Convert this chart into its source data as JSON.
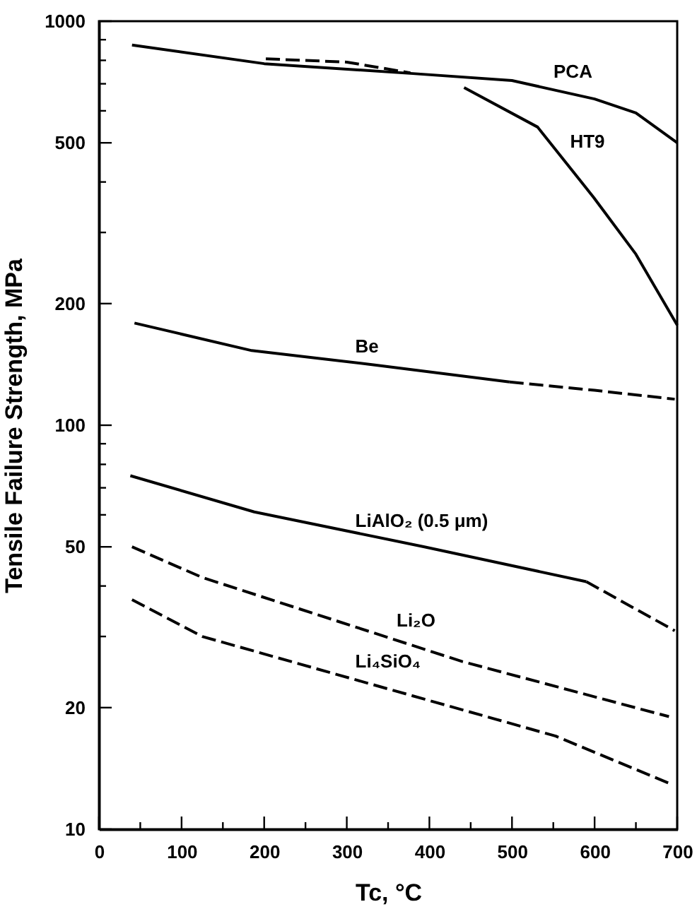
{
  "chart_data": {
    "type": "line",
    "xlabel": "Tc, °C",
    "ylabel": "Tensile Failure Strength, MPa",
    "log": "y",
    "grid": false,
    "marker": "none",
    "xlim": [
      0,
      700
    ],
    "xticks": [
      0,
      {
        "value": 50,
        "label": null
      },
      100,
      {
        "value": 150,
        "label": null
      },
      200,
      {
        "value": 250,
        "label": null
      },
      300,
      {
        "value": 350,
        "label": null
      },
      400,
      {
        "value": 450,
        "label": null
      },
      500,
      {
        "value": 550,
        "label": null
      },
      600,
      {
        "value": 650,
        "label": null
      },
      700
    ],
    "ylim": [
      10,
      1000
    ],
    "yticks": [
      10,
      20,
      {
        "value": 30,
        "label": null
      },
      {
        "value": 40,
        "label": null
      },
      50,
      {
        "value": 60,
        "label": null
      },
      {
        "value": 70,
        "label": null
      },
      {
        "value": 80,
        "label": null
      },
      {
        "value": 90,
        "label": null
      },
      100,
      200,
      {
        "value": 300,
        "label": null
      },
      {
        "value": 400,
        "label": null
      },
      500,
      {
        "value": 600,
        "label": null
      },
      {
        "value": 700,
        "label": null
      },
      {
        "value": 800,
        "label": null
      },
      {
        "value": 900,
        "label": null
      },
      1000
    ],
    "series": [
      {
        "color": "#000000",
        "line_style": "solid",
        "x": [
          40,
          200,
          380,
          500,
          600,
          650,
          700
        ],
        "values": [
          873,
          785,
          742,
          713,
          642,
          593,
          500
        ]
      },
      {
        "color": "#000000",
        "line_style": "dashed",
        "x": [
          202,
          300,
          377
        ],
        "values": [
          807,
          792,
          745
        ]
      },
      {
        "color": "#000000",
        "line_style": "solid",
        "x": [
          442,
          531,
          599,
          650,
          700
        ],
        "values": [
          685,
          547,
          366,
          265,
          177
        ]
      },
      {
        "color": "#000000",
        "line_style": "solid",
        "x": [
          43,
          185,
          334,
          497
        ],
        "values": [
          179,
          153,
          141,
          128
        ]
      },
      {
        "color": "#000000",
        "line_style": "dashed",
        "x": [
          497,
          600,
          697
        ],
        "values": [
          128,
          122,
          116
        ]
      },
      {
        "color": "#000000",
        "line_style": "solid",
        "x": [
          38,
          188,
          394,
          590
        ],
        "values": [
          75,
          61,
          50,
          41
        ]
      },
      {
        "color": "#000000",
        "line_style": "dashed",
        "x": [
          590,
          697
        ],
        "values": [
          41,
          31
        ]
      },
      {
        "color": "#000000",
        "line_style": "dashed",
        "x": [
          40,
          125,
          440,
          690
        ],
        "values": [
          50,
          42,
          26,
          19
        ]
      },
      {
        "color": "#000000",
        "line_style": "dashed",
        "x": [
          40,
          125,
          325,
          553,
          690
        ],
        "values": [
          37,
          30,
          23,
          17,
          13
        ]
      }
    ],
    "annotations": [
      {
        "text": "PCA",
        "x": 540,
        "y": 684
      },
      {
        "text": "HT9",
        "x": 560,
        "y": 460
      },
      {
        "text": "Be",
        "x": 300,
        "y": 143
      },
      {
        "text": "LiAlO₂ (0.5 μm)",
        "x": 300,
        "y": 53
      },
      {
        "text": "Li₂O",
        "x": 350,
        "y": 30
      },
      {
        "text": "Li₄SiO₄",
        "x": 300,
        "y": 23.8
      }
    ]
  }
}
